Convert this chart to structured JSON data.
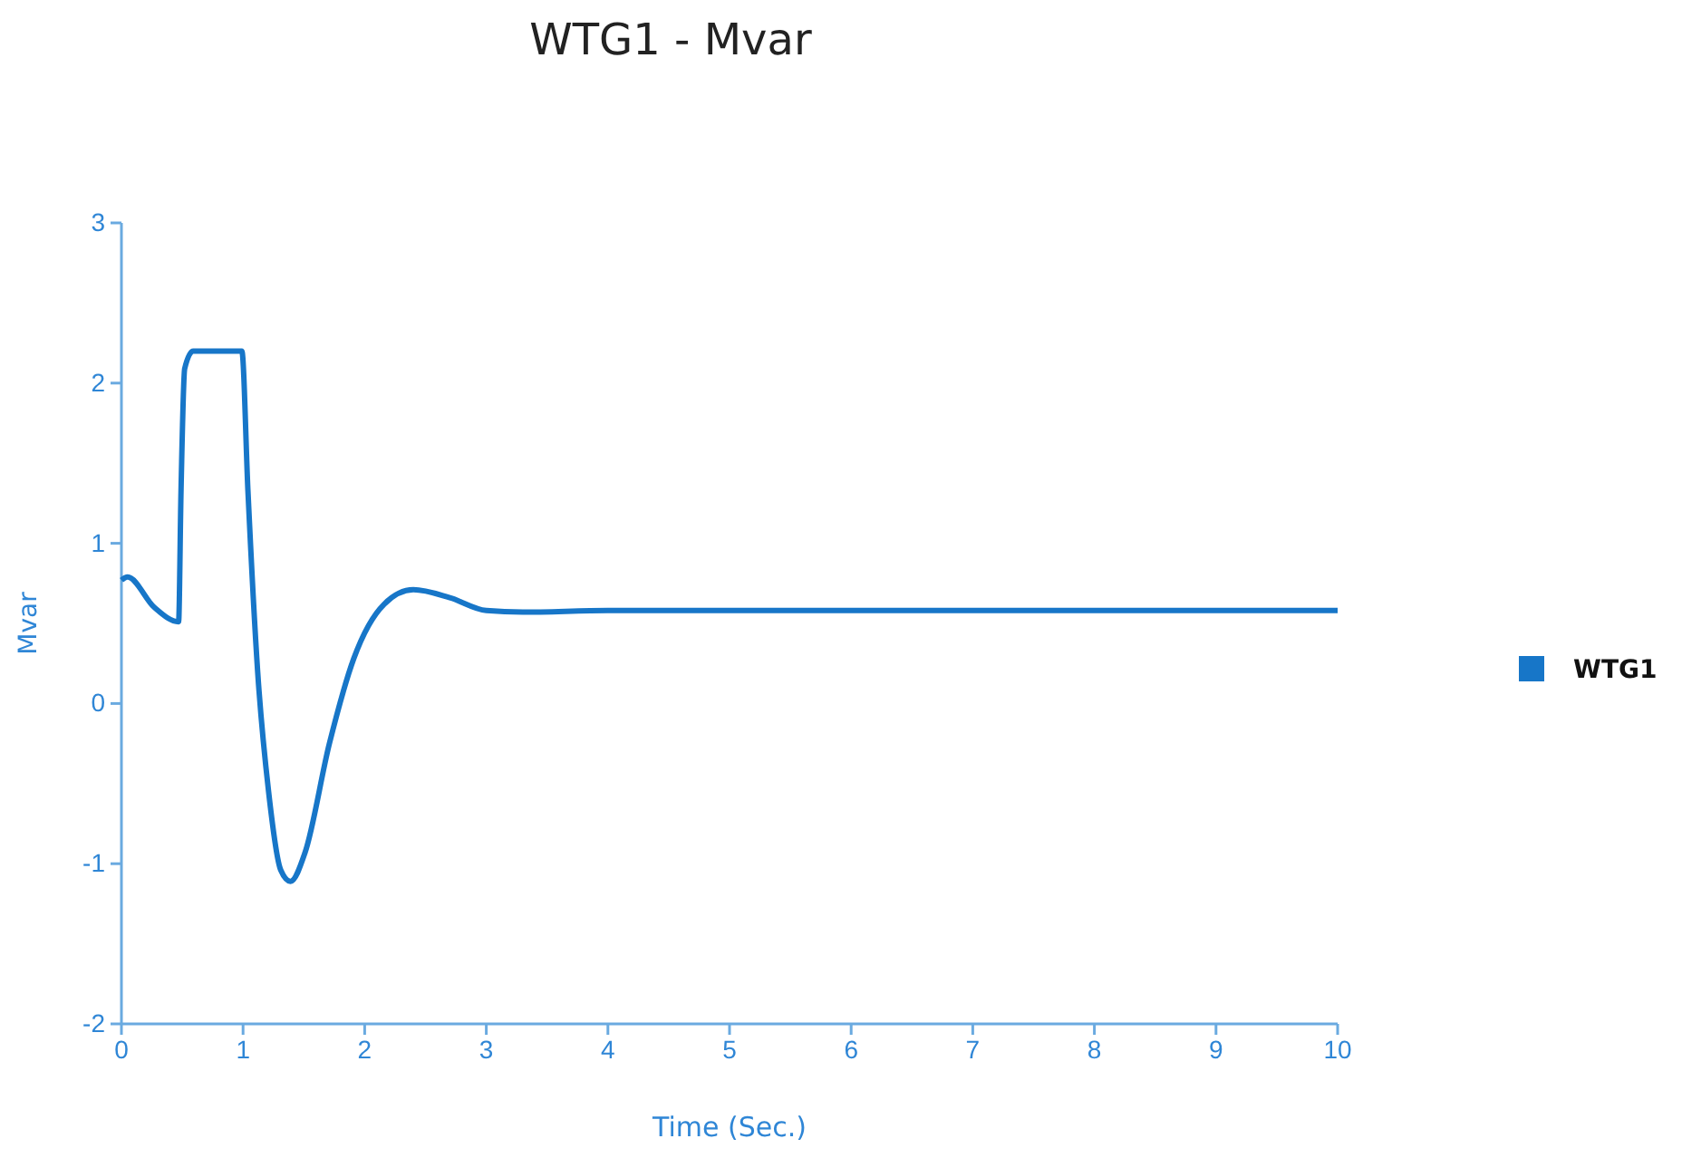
{
  "chart_data": {
    "type": "line",
    "title": "WTG1 - Mvar",
    "xlabel": "Time (Sec.)",
    "ylabel": "Mvar",
    "xlim": [
      0,
      10
    ],
    "xticks": [
      0,
      1,
      2,
      3,
      4,
      5,
      6,
      7,
      8,
      9,
      10
    ],
    "ylim": [
      -2,
      3
    ],
    "yticks": [
      -2,
      -1,
      0,
      1,
      2,
      3
    ],
    "grid": false,
    "legend": "right",
    "marker": "none",
    "line_style": "solid",
    "series": [
      {
        "name": "WTG1",
        "color": "#1776c8",
        "x": [
          0,
          0.05,
          0.27,
          0.47,
          0.49,
          0.52,
          0.59,
          0.99,
          1.04,
          1.12,
          1.21,
          1.31,
          1.39,
          1.51,
          1.71,
          1.91,
          2.16,
          2.4,
          2.7,
          3.0,
          3.3,
          4,
          5,
          6,
          7,
          8,
          9,
          10
        ],
        "values": [
          0.77,
          0.79,
          0.6,
          0.51,
          1.33,
          2.09,
          2.2,
          2.2,
          1.33,
          0.2,
          -0.55,
          -1.04,
          -1.11,
          -0.93,
          -0.25,
          0.28,
          0.62,
          0.71,
          0.66,
          0.58,
          0.57,
          0.58,
          0.58,
          0.58,
          0.58,
          0.58,
          0.58,
          0.58
        ]
      }
    ]
  }
}
